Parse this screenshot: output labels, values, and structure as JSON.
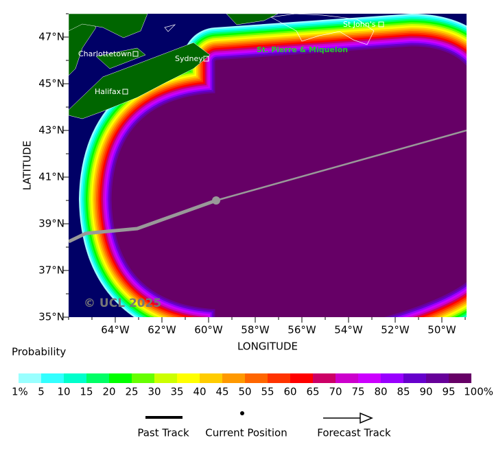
{
  "map": {
    "xlabel": "LONGITUDE",
    "ylabel": "LATITUDE",
    "xticks": [
      "64°W",
      "62°W",
      "60°W",
      "58°W",
      "56°W",
      "54°W",
      "52°W",
      "50°W"
    ],
    "yticks": [
      "47°N",
      "45°N",
      "43°N",
      "41°N",
      "39°N",
      "37°N",
      "35°N"
    ],
    "places": [
      "Charlottetown",
      "Sydney",
      "Halifax",
      "St John's",
      "St. Pierre & Miquelon"
    ],
    "copyright": "© UCL 2025"
  },
  "legend": {
    "title": "Probability",
    "colors": [
      "#99ffff",
      "#33ffff",
      "#00ffcc",
      "#00ff66",
      "#00ff00",
      "#66ff00",
      "#ccff00",
      "#ffff00",
      "#ffcc00",
      "#ff9900",
      "#ff6600",
      "#ff3300",
      "#ff0000",
      "#cc0066",
      "#cc00cc",
      "#cc00ff",
      "#9900ff",
      "#6600cc",
      "#660099",
      "#660066"
    ],
    "labels": [
      "1%",
      "5",
      "10",
      "15",
      "20",
      "25",
      "30",
      "35",
      "40",
      "45",
      "50",
      "55",
      "60",
      "65",
      "70",
      "75",
      "80",
      "85",
      "90",
      "95",
      "100%"
    ],
    "track": [
      "Past Track",
      "Current Position",
      "Forecast Track"
    ]
  }
}
